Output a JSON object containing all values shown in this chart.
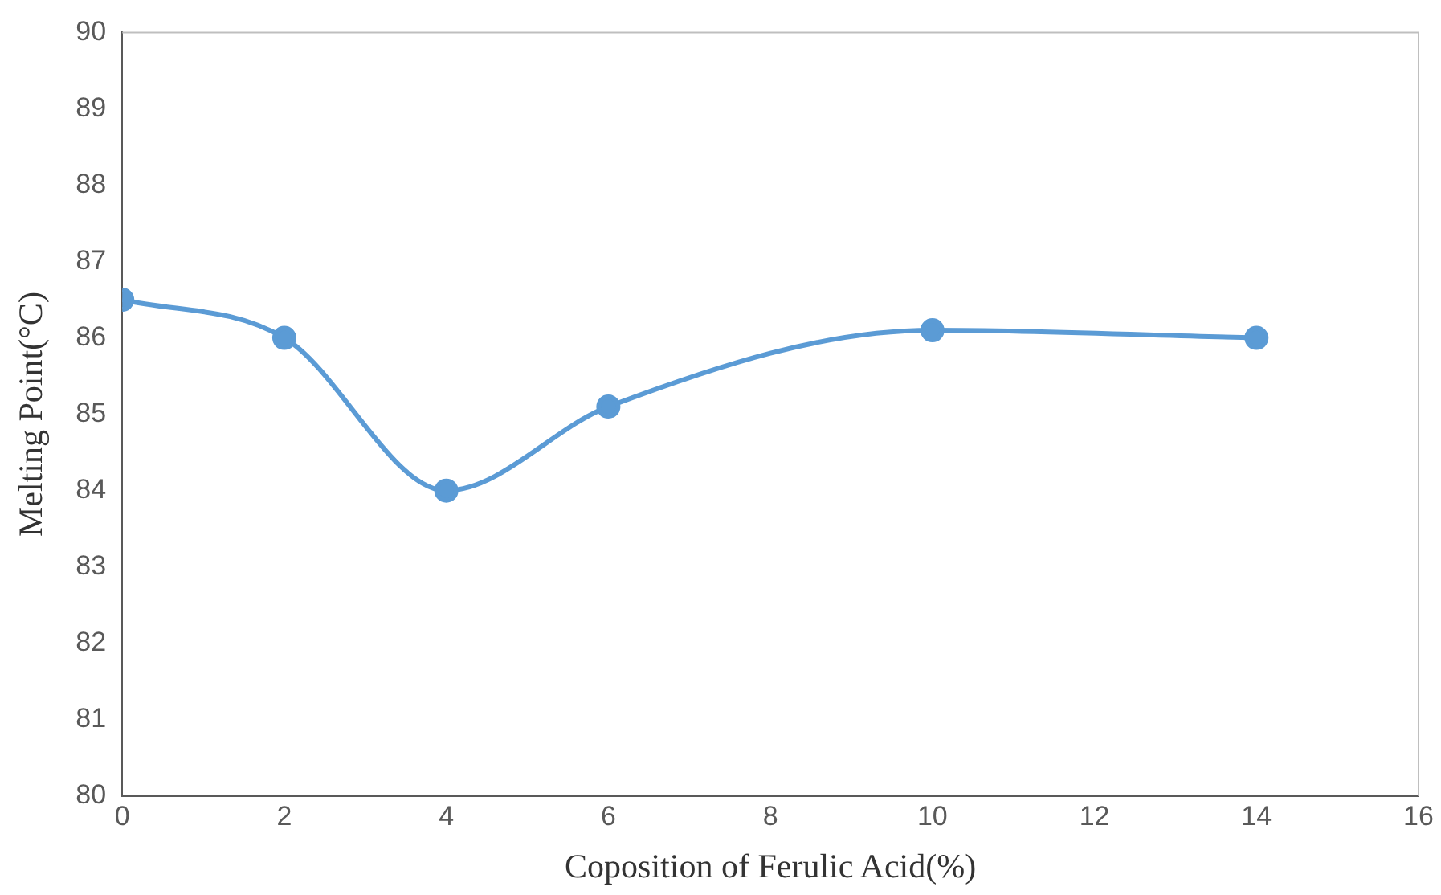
{
  "chart_data": {
    "type": "line",
    "xlabel": "Coposition of Ferulic Acid(%)",
    "ylabel": "Melting Point(°C)",
    "x": [
      0,
      2,
      4,
      6,
      10,
      14
    ],
    "series": [
      {
        "color": "#5b9bd5",
        "values": [
          86.5,
          86,
          84,
          85.1,
          86.1,
          86
        ]
      }
    ],
    "xlim": [
      0,
      16
    ],
    "xticks": [
      0,
      2,
      4,
      6,
      8,
      10,
      12,
      14,
      16
    ],
    "ylim": [
      80,
      90
    ],
    "yticks": [
      80,
      81,
      82,
      83,
      84,
      85,
      86,
      87,
      88,
      89,
      90
    ],
    "grid": false,
    "legend": false,
    "marker": "circle",
    "line_style": "solid"
  }
}
